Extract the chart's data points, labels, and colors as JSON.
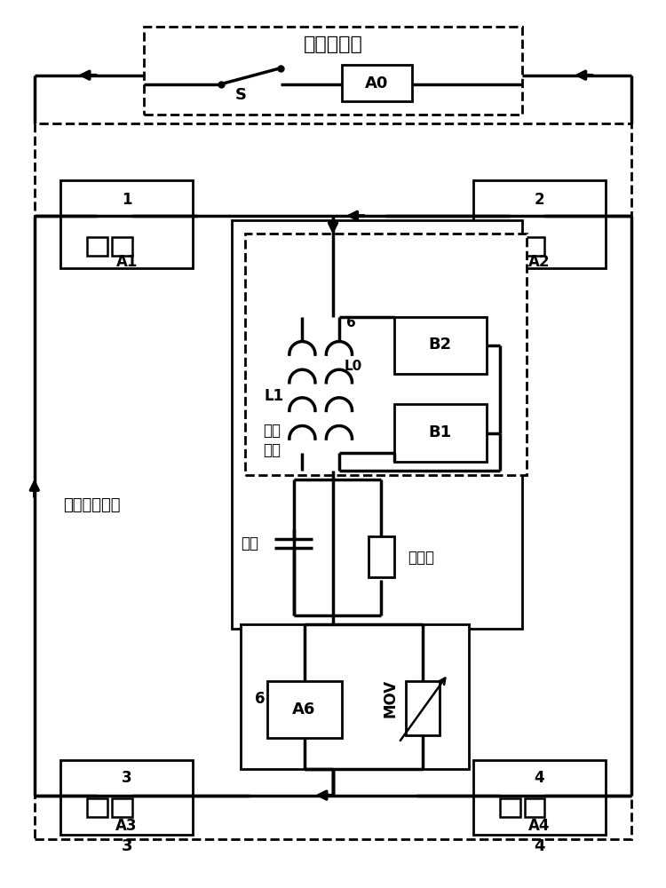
{
  "bg": "#ffffff",
  "lc": "#000000",
  "main_label": "主电流电路",
  "transfer_label": "转移电流电路",
  "induction_label1": "感应",
  "induction_label2": "模块",
  "cap_label": "电容",
  "res_label": "电阵器",
  "S_label": "S",
  "A0": "A0",
  "A1": "A1",
  "A2": "A2",
  "A3": "A3",
  "A4": "A4",
  "A6": "A6",
  "B1": "B1",
  "B2": "B2",
  "L0": "L0",
  "L1": "L1",
  "MOV": "MOV",
  "n1": "1",
  "n2": "2",
  "n3": "3",
  "n4": "4",
  "n6": "6"
}
